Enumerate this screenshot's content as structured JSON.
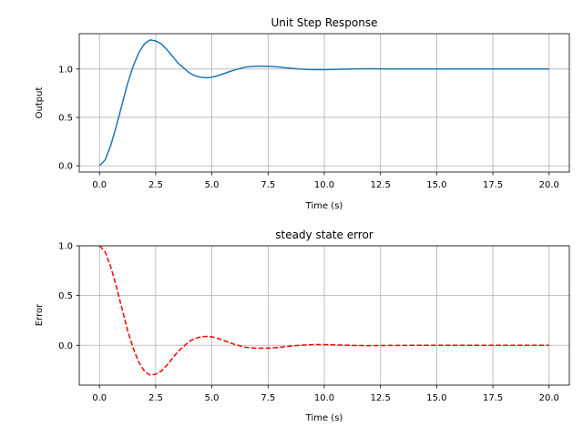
{
  "chart_data": [
    {
      "type": "line",
      "title": "Unit Step Response",
      "xlabel": "Time (s)",
      "ylabel": "Output",
      "xlim": [
        -0.9,
        20.9
      ],
      "ylim": [
        -0.065,
        1.365
      ],
      "xticks": [
        0.0,
        2.5,
        5.0,
        7.5,
        10.0,
        12.5,
        15.0,
        17.5,
        20.0
      ],
      "xtick_labels": [
        "0.0",
        "2.5",
        "5.0",
        "7.5",
        "10.0",
        "12.5",
        "15.0",
        "17.5",
        "20.0"
      ],
      "yticks": [
        0.0,
        0.5,
        1.0
      ],
      "ytick_labels": [
        "0.0",
        "0.5",
        "1.0"
      ],
      "grid": true,
      "series": [
        {
          "color": "#1f77b4",
          "linestyle": "solid",
          "x": [
            0,
            0.25,
            0.5,
            0.75,
            1.0,
            1.25,
            1.5,
            1.75,
            2.0,
            2.25,
            2.5,
            2.75,
            3.0,
            3.25,
            3.5,
            3.75,
            4.0,
            4.25,
            4.5,
            4.75,
            5.0,
            5.25,
            5.5,
            5.75,
            6.0,
            6.5,
            7.0,
            7.5,
            8.0,
            8.5,
            9.0,
            9.5,
            10.0,
            10.5,
            11.0,
            11.5,
            12.0,
            12.5,
            13.0,
            14.0,
            15.0,
            16.0,
            17.0,
            18.0,
            19.0,
            20.0
          ],
          "y": [
            0.0,
            0.06,
            0.21,
            0.41,
            0.63,
            0.85,
            1.03,
            1.17,
            1.26,
            1.3,
            1.29,
            1.26,
            1.2,
            1.13,
            1.06,
            1.01,
            0.96,
            0.93,
            0.915,
            0.91,
            0.915,
            0.93,
            0.95,
            0.97,
            0.99,
            1.02,
            1.03,
            1.028,
            1.02,
            1.008,
            0.998,
            0.993,
            0.993,
            0.996,
            0.999,
            1.002,
            1.003,
            1.002,
            1.001,
            1.0,
            1.0,
            1.0,
            1.0,
            1.0,
            1.0,
            1.0
          ]
        }
      ]
    },
    {
      "type": "line",
      "title": "steady state error",
      "xlabel": "Time (s)",
      "ylabel": "Error",
      "xlim": [
        -0.9,
        20.9
      ],
      "ylim": [
        -0.4,
        1.0
      ],
      "xticks": [
        0.0,
        2.5,
        5.0,
        7.5,
        10.0,
        12.5,
        15.0,
        17.5,
        20.0
      ],
      "xtick_labels": [
        "0.0",
        "2.5",
        "5.0",
        "7.5",
        "10.0",
        "12.5",
        "15.0",
        "17.5",
        "20.0"
      ],
      "yticks": [
        0.0,
        0.5,
        1.0
      ],
      "ytick_labels": [
        "0.0",
        "0.5",
        "1.0"
      ],
      "grid": true,
      "series": [
        {
          "color": "#ff0000",
          "linestyle": "dashed",
          "x": [
            0,
            0.25,
            0.5,
            0.75,
            1.0,
            1.25,
            1.5,
            1.75,
            2.0,
            2.25,
            2.5,
            2.75,
            3.0,
            3.25,
            3.5,
            3.75,
            4.0,
            4.25,
            4.5,
            4.75,
            5.0,
            5.25,
            5.5,
            5.75,
            6.0,
            6.5,
            7.0,
            7.5,
            8.0,
            8.5,
            9.0,
            9.5,
            10.0,
            10.5,
            11.0,
            11.5,
            12.0,
            12.5,
            13.0,
            14.0,
            15.0,
            16.0,
            17.0,
            18.0,
            19.0,
            20.0
          ],
          "y": [
            1.0,
            0.94,
            0.79,
            0.59,
            0.37,
            0.15,
            -0.03,
            -0.17,
            -0.26,
            -0.3,
            -0.29,
            -0.26,
            -0.2,
            -0.13,
            -0.06,
            -0.01,
            0.04,
            0.07,
            0.085,
            0.09,
            0.085,
            0.07,
            0.05,
            0.03,
            0.01,
            -0.02,
            -0.03,
            -0.028,
            -0.02,
            -0.008,
            0.002,
            0.007,
            0.007,
            0.004,
            0.001,
            -0.002,
            -0.003,
            -0.002,
            -0.001,
            0.0,
            0.0,
            0.0,
            0.0,
            0.0,
            0.0,
            0.0
          ]
        }
      ]
    }
  ]
}
